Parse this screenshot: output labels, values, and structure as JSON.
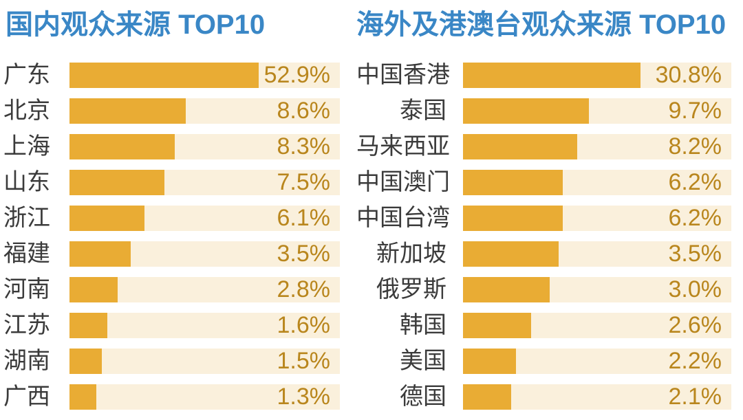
{
  "colors": {
    "background": "#FFFFFF",
    "title_text": "#3A87C6",
    "bar_fill": "#E9AC34",
    "bar_track": "#FAF0DC",
    "value_text": "#B9861D",
    "category_text": "#3B3B3B"
  },
  "chart_data": [
    {
      "type": "bar",
      "orientation": "horizontal",
      "title": "国内观众来源 TOP10",
      "categories": [
        "广东",
        "北京",
        "上海",
        "山东",
        "浙江",
        "福建",
        "河南",
        "江苏",
        "湖南",
        "广西"
      ],
      "values": [
        52.9,
        8.6,
        8.3,
        7.5,
        6.1,
        3.5,
        2.8,
        1.6,
        1.5,
        1.3
      ],
      "value_labels": [
        "52.9%",
        "8.6%",
        "8.3%",
        "7.5%",
        "6.1%",
        "3.5%",
        "2.8%",
        "1.6%",
        "1.5%",
        "1.3%"
      ],
      "bar_display_pct": [
        70.0,
        43.0,
        38.9,
        35.1,
        27.7,
        22.6,
        17.8,
        14.0,
        12.0,
        9.9
      ],
      "value_label_position": "inside-track-right",
      "grid": false,
      "axis_shown": false
    },
    {
      "type": "bar",
      "orientation": "horizontal",
      "title": "海外及港澳台观众来源 TOP10",
      "categories": [
        "中国香港",
        "泰国",
        "马来西亚",
        "中国澳门",
        "中国台湾",
        "新加坡",
        "俄罗斯",
        "韩国",
        "美国",
        "德国"
      ],
      "values": [
        30.8,
        9.7,
        8.2,
        6.2,
        6.2,
        3.5,
        3.0,
        2.6,
        2.2,
        2.1
      ],
      "value_labels": [
        "30.8%",
        "9.7%",
        "8.2%",
        "6.2%",
        "6.2%",
        "3.5%",
        "3.0%",
        "2.6%",
        "2.2%",
        "2.1%"
      ],
      "bar_display_pct": [
        66.2,
        46.9,
        42.6,
        37.2,
        37.2,
        35.6,
        32.3,
        25.4,
        19.7,
        17.9
      ],
      "value_label_position": "inside-track-right",
      "grid": false,
      "axis_shown": false
    }
  ]
}
